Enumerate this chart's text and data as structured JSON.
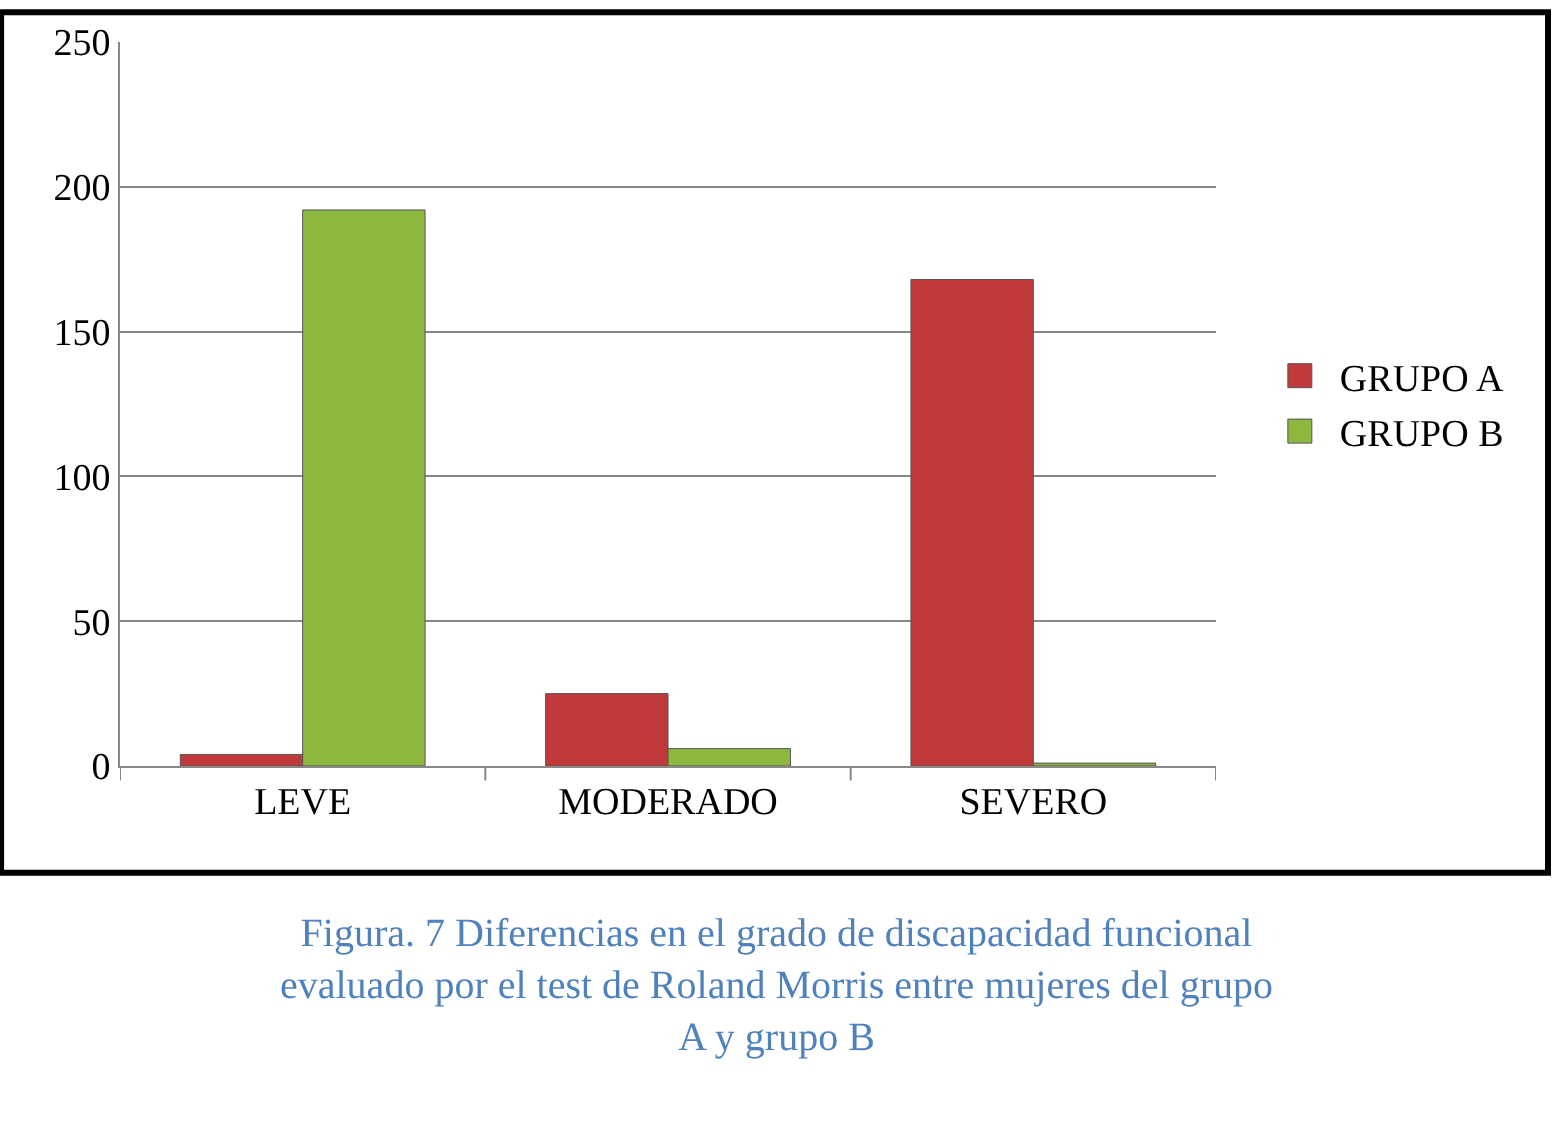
{
  "chart_data": {
    "type": "bar",
    "categories": [
      "LEVE",
      "MODERADO",
      "SEVERO"
    ],
    "series": [
      {
        "name": "GRUPO A",
        "color": "#c0393b",
        "values": [
          4,
          25,
          168
        ]
      },
      {
        "name": "GRUPO B",
        "color": "#8db840",
        "values": [
          192,
          6,
          1
        ]
      }
    ],
    "ylim": [
      0,
      250
    ],
    "yticks": [
      0,
      50,
      100,
      150,
      200,
      250
    ],
    "grid": "y",
    "legend": "right",
    "annotations": [
      "Figura. 7 Diferencias en el grado de discapacidad funcional evaluado por el test de Roland Morris entre mujeres del grupo A y grupo B"
    ]
  }
}
